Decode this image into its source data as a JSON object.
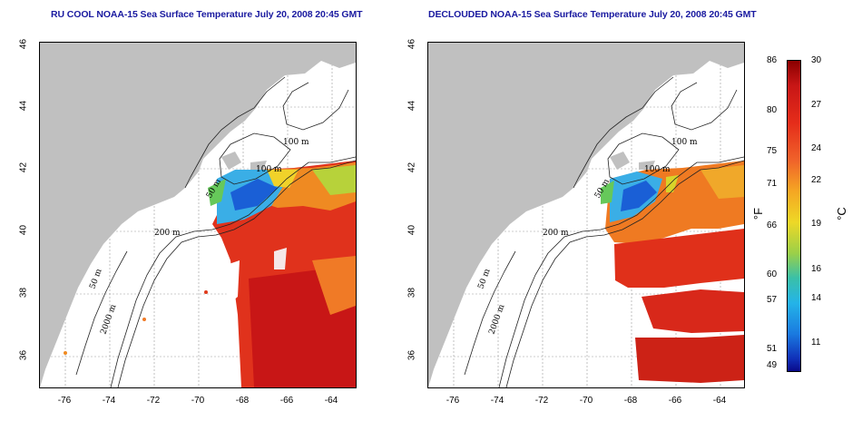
{
  "titles": {
    "left": "RU COOL NOAA-15 Sea Surface Temperature July 20, 2008 20:45 GMT",
    "right": "DECLOUDED NOAA-15 Sea Surface Temperature July 20, 2008 20:45 GMT"
  },
  "map_axes": {
    "lon_ticks": [
      "-76",
      "-74",
      "-72",
      "-70",
      "-68",
      "-66",
      "-64"
    ],
    "lat_ticks": [
      "46",
      "44",
      "42",
      "40",
      "38",
      "36"
    ]
  },
  "contour_labels": [
    "100 m",
    "100 m",
    "50 m",
    "200 m",
    "50 m",
    "2000 m"
  ],
  "colorbar": {
    "fahrenheit_ticks": [
      "86",
      "80",
      "75",
      "71",
      "66",
      "60",
      "57",
      "51",
      "49"
    ],
    "celsius_ticks": [
      "30",
      "27",
      "24",
      "22",
      "19",
      "16",
      "14",
      "11"
    ],
    "unit_f": "°F",
    "unit_c": "°C",
    "range_c": [
      9.4,
      30
    ]
  },
  "colors": {
    "land": "#c0c0c0",
    "sea_warm": "#e52d1a",
    "sea_hot": "#c81616",
    "sea_mid": "#ef7a1c",
    "sea_cool": "#3a9ee6",
    "sea_cold": "#1a5fd6",
    "title": "#1a1aa0"
  }
}
